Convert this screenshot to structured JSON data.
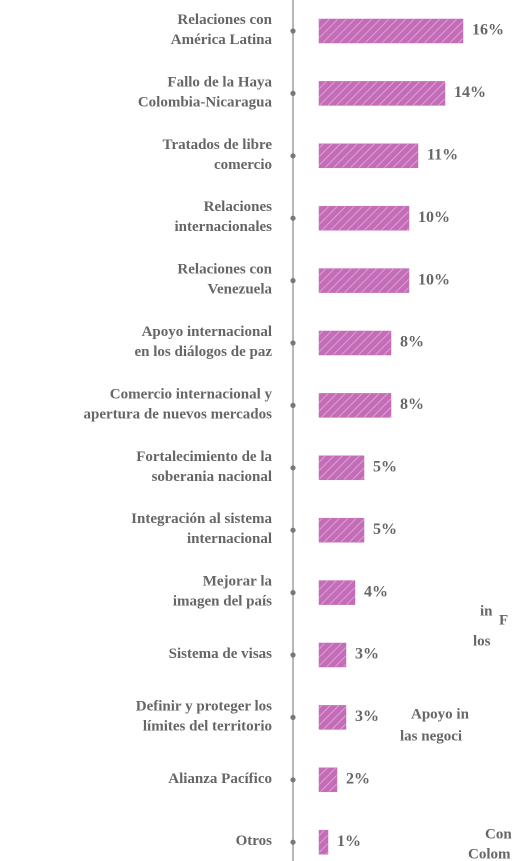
{
  "chart_data": {
    "type": "bar",
    "orientation": "horizontal",
    "categories": [
      "Relaciones con\nAmérica Latina",
      "Fallo de la Haya\nColombia-Nicaragua",
      "Tratados de libre\ncomercio",
      "Relaciones\ninternacionales",
      "Relaciones con\nVenezuela",
      "Apoyo internacional\nen los diálogos de paz",
      "Comercio internacional y\napertura de nuevos mercados",
      "Fortalecimiento de la\nsoberania nacional",
      "Integración al sistema\ninternacional",
      "Mejorar la\nimagen del país",
      "Sistema de visas",
      "Definir y proteger los\nlímites del territorio",
      "Alianza Pacífico",
      "Otros"
    ],
    "values": [
      16,
      14,
      11,
      10,
      10,
      8,
      8,
      5,
      5,
      4,
      3,
      3,
      2,
      1
    ],
    "value_labels": [
      "16%",
      "14%",
      "11%",
      "10%",
      "10%",
      "8%",
      "8%",
      "5%",
      "5%",
      "4%",
      "3%",
      "3%",
      "2%",
      "1%"
    ],
    "color": "#c46cb8",
    "xlim": [
      0,
      16
    ],
    "annotations": [
      "in",
      "F",
      "los",
      "Apoyo in",
      "las negoci",
      "Con",
      "Colom"
    ]
  }
}
